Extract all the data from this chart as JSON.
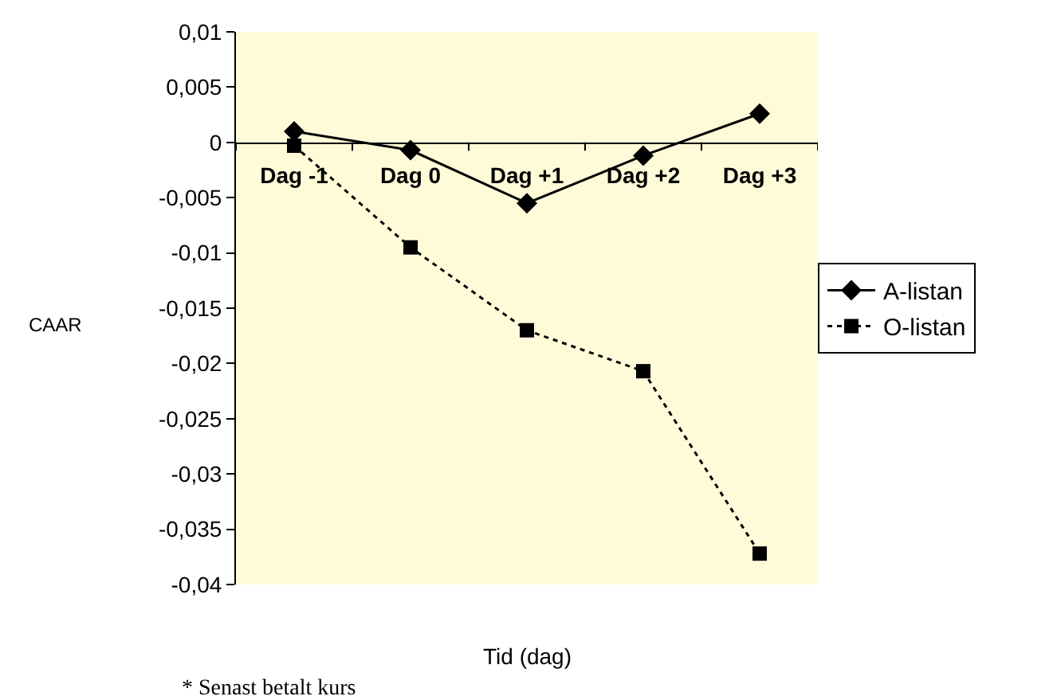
{
  "chart_data": {
    "type": "line",
    "categories": [
      "Dag -1",
      "Dag 0",
      "Dag +1",
      "Dag +2",
      "Dag +3"
    ],
    "series": [
      {
        "name": "A-listan",
        "color": "#000000",
        "marker": "diamond",
        "line_style": "solid",
        "values": [
          0.001,
          -0.0007,
          -0.0055,
          -0.0012,
          0.0026
        ]
      },
      {
        "name": "O-listan",
        "color": "#000000",
        "marker": "square",
        "line_style": "dotted",
        "values": [
          -0.0003,
          -0.0095,
          -0.017,
          -0.0207,
          -0.0372
        ]
      }
    ],
    "ylim": [
      -0.04,
      0.01
    ],
    "yticks": [
      {
        "value": 0.01,
        "label": "0,01"
      },
      {
        "value": 0.005,
        "label": "0,005"
      },
      0,
      {
        "value": -0.005,
        "label": "-0,005"
      },
      {
        "value": -0.01,
        "label": "-0,01"
      },
      {
        "value": -0.015,
        "label": "-0,015"
      },
      {
        "value": -0.02,
        "label": "-0,02"
      },
      {
        "value": -0.025,
        "label": "-0,025"
      },
      {
        "value": -0.03,
        "label": "-0,03"
      },
      {
        "value": -0.035,
        "label": "-0,035"
      },
      {
        "value": -0.04,
        "label": "-0,04"
      }
    ],
    "ylabel": "CAAR",
    "xlabel": "Tid (dag)",
    "annotations": [
      "* Senast betalt kurs"
    ],
    "grid": false,
    "legend": "right"
  }
}
